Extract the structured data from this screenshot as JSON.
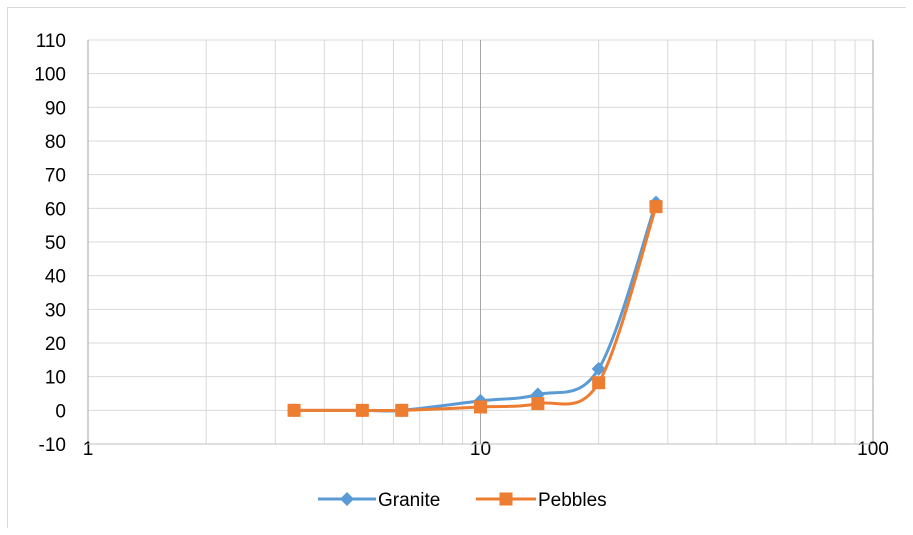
{
  "chart_data": {
    "type": "line",
    "title": "",
    "xlabel": "",
    "ylabel": "",
    "x_scale": "log",
    "xlim": [
      1,
      100
    ],
    "ylim": [
      -10,
      110
    ],
    "x_ticks": [
      "1",
      "10",
      "100"
    ],
    "y_ticks": [
      "-10",
      "0",
      "10",
      "20",
      "30",
      "40",
      "50",
      "60",
      "70",
      "80",
      "90",
      "100",
      "110"
    ],
    "grid": true,
    "smooth": true,
    "legend_position": "bottom",
    "series": [
      {
        "name": "Granite",
        "color": "#5b9bd5",
        "marker": "diamond",
        "x": [
          3.35,
          5,
          6.3,
          10,
          14,
          20,
          28
        ],
        "y": [
          0,
          0,
          0,
          2.8,
          4.7,
          12.3,
          61.7
        ]
      },
      {
        "name": "Pebbles",
        "color": "#ed7d31",
        "marker": "square",
        "x": [
          3.35,
          5,
          6.3,
          10,
          14,
          20,
          28
        ],
        "y": [
          0,
          0,
          0,
          1,
          2,
          8.2,
          60.5
        ]
      }
    ]
  }
}
